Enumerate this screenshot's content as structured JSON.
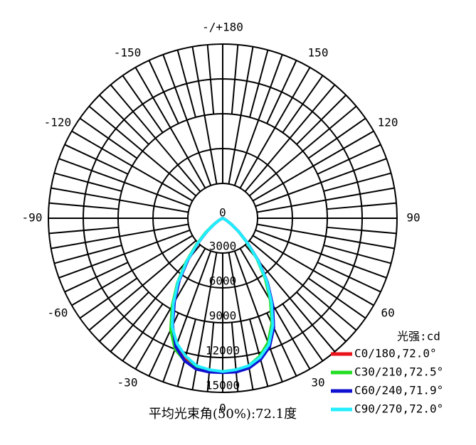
{
  "chart_data": {
    "type": "polar",
    "x": [
      -90,
      -85,
      -80,
      -75,
      -70,
      -65,
      -60,
      -55,
      -50,
      -45,
      -40,
      -35,
      -30,
      -25,
      -20,
      -15,
      -10,
      -5,
      0,
      5,
      10,
      15,
      20,
      25,
      30,
      35,
      40,
      45,
      50,
      55,
      60,
      65,
      70,
      75,
      80,
      85,
      90
    ],
    "series": [
      {
        "name": "C0/180,72.0°",
        "color": "#e8141a",
        "values": [
          0,
          0,
          0,
          20,
          50,
          150,
          400,
          900,
          1800,
          3000,
          4700,
          6600,
          8400,
          10300,
          11700,
          12500,
          13000,
          13200,
          13300,
          13200,
          13000,
          12500,
          11700,
          10300,
          8400,
          6600,
          4700,
          3000,
          1800,
          900,
          400,
          150,
          50,
          20,
          0,
          0,
          0
        ]
      },
      {
        "name": "C30/210,72.5°",
        "color": "#22dd22",
        "values": [
          0,
          0,
          0,
          30,
          70,
          180,
          450,
          1000,
          1950,
          3200,
          4900,
          6800,
          8700,
          10600,
          12000,
          12700,
          13100,
          13200,
          13200,
          13100,
          12900,
          12300,
          11400,
          10000,
          8200,
          6400,
          4600,
          2950,
          1750,
          880,
          380,
          140,
          50,
          20,
          0,
          0,
          0
        ]
      },
      {
        "name": "C60/240,71.9°",
        "color": "#1010d0",
        "values": [
          0,
          0,
          0,
          20,
          50,
          140,
          380,
          880,
          1750,
          2950,
          4600,
          6500,
          8300,
          10200,
          11800,
          12700,
          13200,
          13300,
          13300,
          13300,
          13100,
          12600,
          11800,
          10400,
          8600,
          6700,
          4800,
          3050,
          1800,
          900,
          400,
          150,
          50,
          20,
          0,
          0,
          0
        ]
      },
      {
        "name": "C90/270,72.0°",
        "color": "#22eeff",
        "values": [
          0,
          0,
          0,
          20,
          50,
          150,
          400,
          900,
          1800,
          3050,
          4750,
          6700,
          8500,
          10300,
          11500,
          12300,
          12900,
          13100,
          13200,
          13100,
          12900,
          12400,
          11600,
          10200,
          8400,
          6600,
          4700,
          3000,
          1800,
          900,
          400,
          150,
          50,
          20,
          0,
          0,
          0
        ]
      }
    ],
    "rlim": [
      0,
      15000
    ],
    "rticks": [
      0,
      3000,
      6000,
      9000,
      12000,
      15000
    ],
    "angleticks": [
      {
        "value": 180,
        "label": "-/+180"
      },
      150,
      120,
      90,
      60,
      30,
      0,
      -30,
      -60,
      -90,
      -120,
      -150
    ],
    "legend_title": "光强:cd",
    "caption": "平均光束角(50%):72.1度"
  }
}
